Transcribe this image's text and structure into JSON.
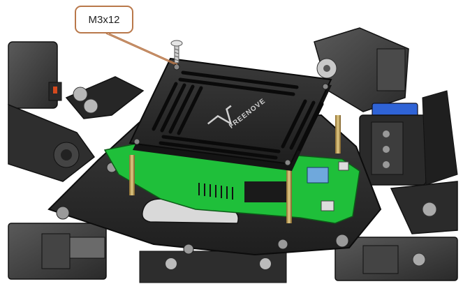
{
  "callout": {
    "label": "M3x12"
  },
  "board": {
    "logo_text": "FREENOVE"
  },
  "colors": {
    "plate": "#2b2b2b",
    "plate_dark": "#181818",
    "pcb": "#1fbf3a",
    "servo": "#3c3c3c",
    "blue_part": "#2f63d6",
    "callout_border": "#b9784a",
    "standoff": "#c8a455"
  }
}
